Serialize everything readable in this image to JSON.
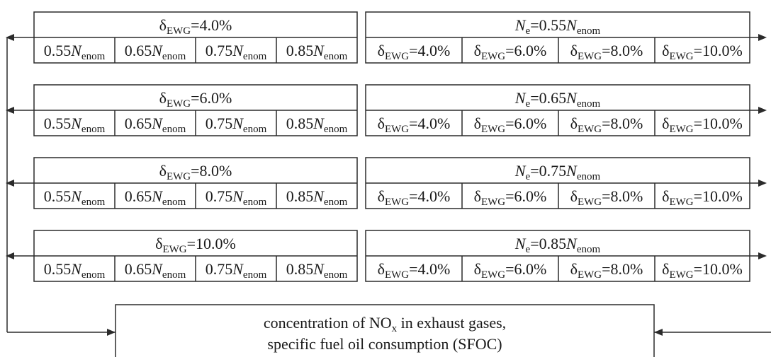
{
  "left_groups": [
    {
      "header": [
        "δ",
        "EWG",
        "=4.0%"
      ],
      "cells": [
        [
          "0.55",
          "N",
          "enom"
        ],
        [
          "0.65",
          "N",
          "enom"
        ],
        [
          "0.75",
          "N",
          "enom"
        ],
        [
          "0.85",
          "N",
          "enom"
        ]
      ]
    },
    {
      "header": [
        "δ",
        "EWG",
        "=6.0%"
      ],
      "cells": [
        [
          "0.55",
          "N",
          "enom"
        ],
        [
          "0.65",
          "N",
          "enom"
        ],
        [
          "0.75",
          "N",
          "enom"
        ],
        [
          "0.85",
          "N",
          "enom"
        ]
      ]
    },
    {
      "header": [
        "δ",
        "EWG",
        "=8.0%"
      ],
      "cells": [
        [
          "0.55",
          "N",
          "enom"
        ],
        [
          "0.65",
          "N",
          "enom"
        ],
        [
          "0.75",
          "N",
          "enom"
        ],
        [
          "0.85",
          "N",
          "enom"
        ]
      ]
    },
    {
      "header": [
        "δ",
        "EWG",
        "=10.0%"
      ],
      "cells": [
        [
          "0.55",
          "N",
          "enom"
        ],
        [
          "0.65",
          "N",
          "enom"
        ],
        [
          "0.75",
          "N",
          "enom"
        ],
        [
          "0.85",
          "N",
          "enom"
        ]
      ]
    }
  ],
  "right_groups": [
    {
      "header": [
        "N",
        "e",
        "=0.55",
        "N",
        "enom"
      ],
      "cells": [
        [
          "δ",
          "EWG",
          "=4.0%"
        ],
        [
          "δ",
          "EWG",
          "=6.0%"
        ],
        [
          "δ",
          "EWG",
          "=8.0%"
        ],
        [
          "δ",
          "EWG",
          "=10.0%"
        ]
      ]
    },
    {
      "header": [
        "N",
        "e",
        "=0.65",
        "N",
        "enom"
      ],
      "cells": [
        [
          "δ",
          "EWG",
          "=4.0%"
        ],
        [
          "δ",
          "EWG",
          "=6.0%"
        ],
        [
          "δ",
          "EWG",
          "=8.0%"
        ],
        [
          "δ",
          "EWG",
          "=10.0%"
        ]
      ]
    },
    {
      "header": [
        "N",
        "e",
        "=0.75",
        "N",
        "enom"
      ],
      "cells": [
        [
          "δ",
          "EWG",
          "=4.0%"
        ],
        [
          "δ",
          "EWG",
          "=6.0%"
        ],
        [
          "δ",
          "EWG",
          "=8.0%"
        ],
        [
          "δ",
          "EWG",
          "=10.0%"
        ]
      ]
    },
    {
      "header": [
        "N",
        "e",
        "=0.85",
        "N",
        "enom"
      ],
      "cells": [
        [
          "δ",
          "EWG",
          "=4.0%"
        ],
        [
          "δ",
          "EWG",
          "=6.0%"
        ],
        [
          "δ",
          "EWG",
          "=8.0%"
        ],
        [
          "δ",
          "EWG",
          "=10.0%"
        ]
      ]
    }
  ],
  "output_box": {
    "line1_prefix": "concentration of NO",
    "line1_sub": "x",
    "line1_suffix": " in exhaust gases,",
    "line2": "specific fuel oil consumption (SFOC)"
  }
}
